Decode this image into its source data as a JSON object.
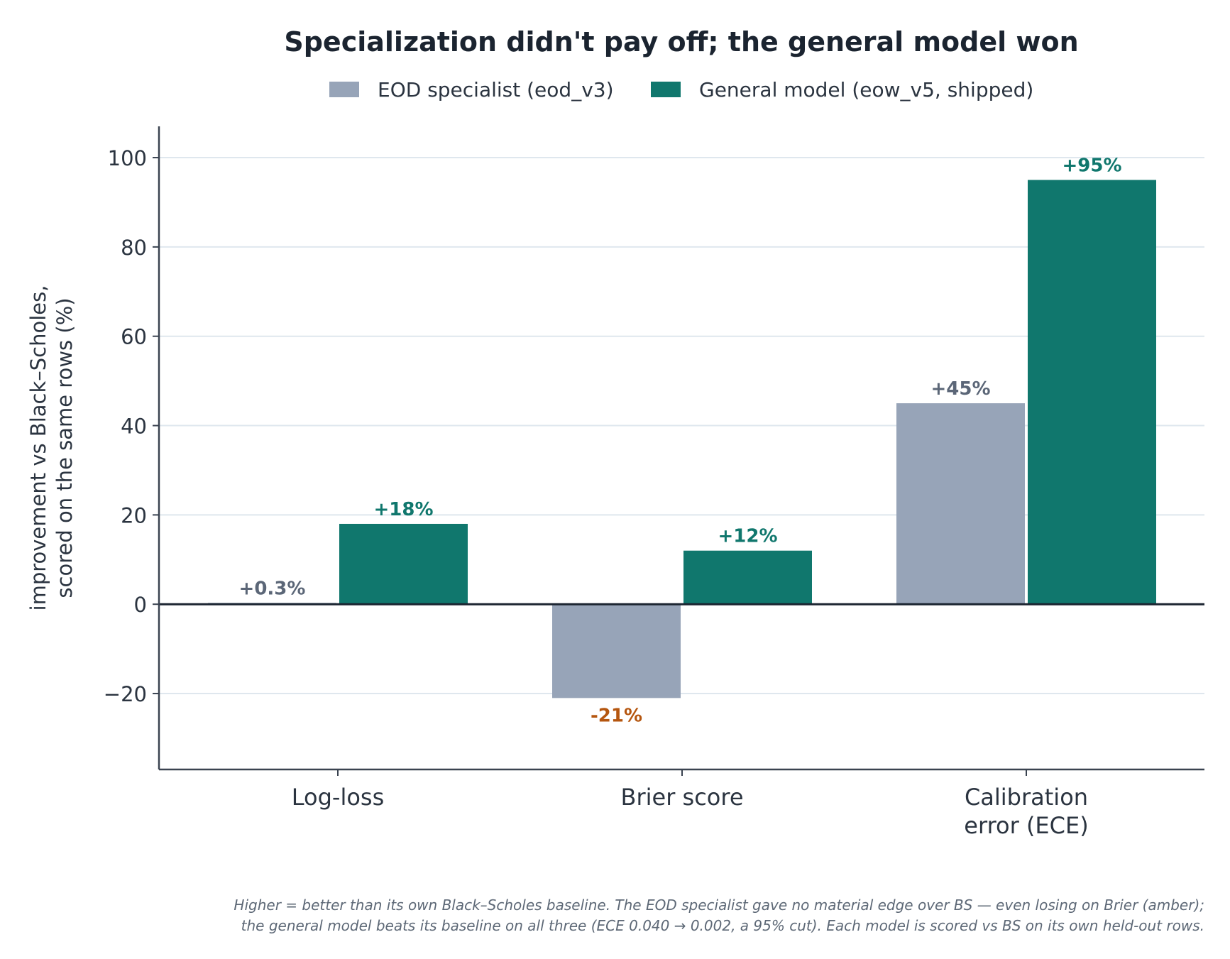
{
  "chart_data": {
    "type": "bar",
    "title": "Specialization didn't pay off; the general model won",
    "ylabel_lines": [
      "improvement vs Black–Scholes,",
      "scored on the same rows  (%)"
    ],
    "xlabel": "",
    "categories": [
      {
        "lines": [
          "Log-loss"
        ]
      },
      {
        "lines": [
          "Brier score"
        ]
      },
      {
        "lines": [
          "Calibration",
          "error (ECE)"
        ]
      }
    ],
    "series": [
      {
        "name": "EOD specialist (eod_v3)",
        "color": "#97a4b8",
        "values": [
          0.3,
          -21,
          45
        ],
        "labels": [
          "+0.3%",
          "-21%",
          "+45%"
        ],
        "label_colors": [
          "#5b6677",
          "#b5560f",
          "#5b6677"
        ]
      },
      {
        "name": "General model (eow_v5, shipped)",
        "color": "#10776d",
        "values": [
          18,
          12,
          95
        ],
        "labels": [
          "+18%",
          "+12%",
          "+95%"
        ],
        "label_colors": [
          "#10776d",
          "#10776d",
          "#10776d"
        ]
      }
    ],
    "ylim": [
      -37,
      107
    ],
    "yticks": [
      -20,
      0,
      20,
      40,
      60,
      80,
      100
    ],
    "ytick_labels": [
      "−20",
      "0",
      "20",
      "40",
      "60",
      "80",
      "100"
    ],
    "grid": true,
    "legend_position": "top-center",
    "zero_line_color": "#1b2430",
    "grid_color": "#dfe7ee",
    "axis_color": "#3a4350"
  },
  "footnote_lines": [
    "Higher = better than its own Black–Scholes baseline. The EOD specialist gave no material edge over BS — even losing on Brier (amber);",
    "the general model beats its baseline on all three (ECE 0.040 → 0.002, a 95% cut). Each model is scored vs BS on its own held-out rows."
  ]
}
